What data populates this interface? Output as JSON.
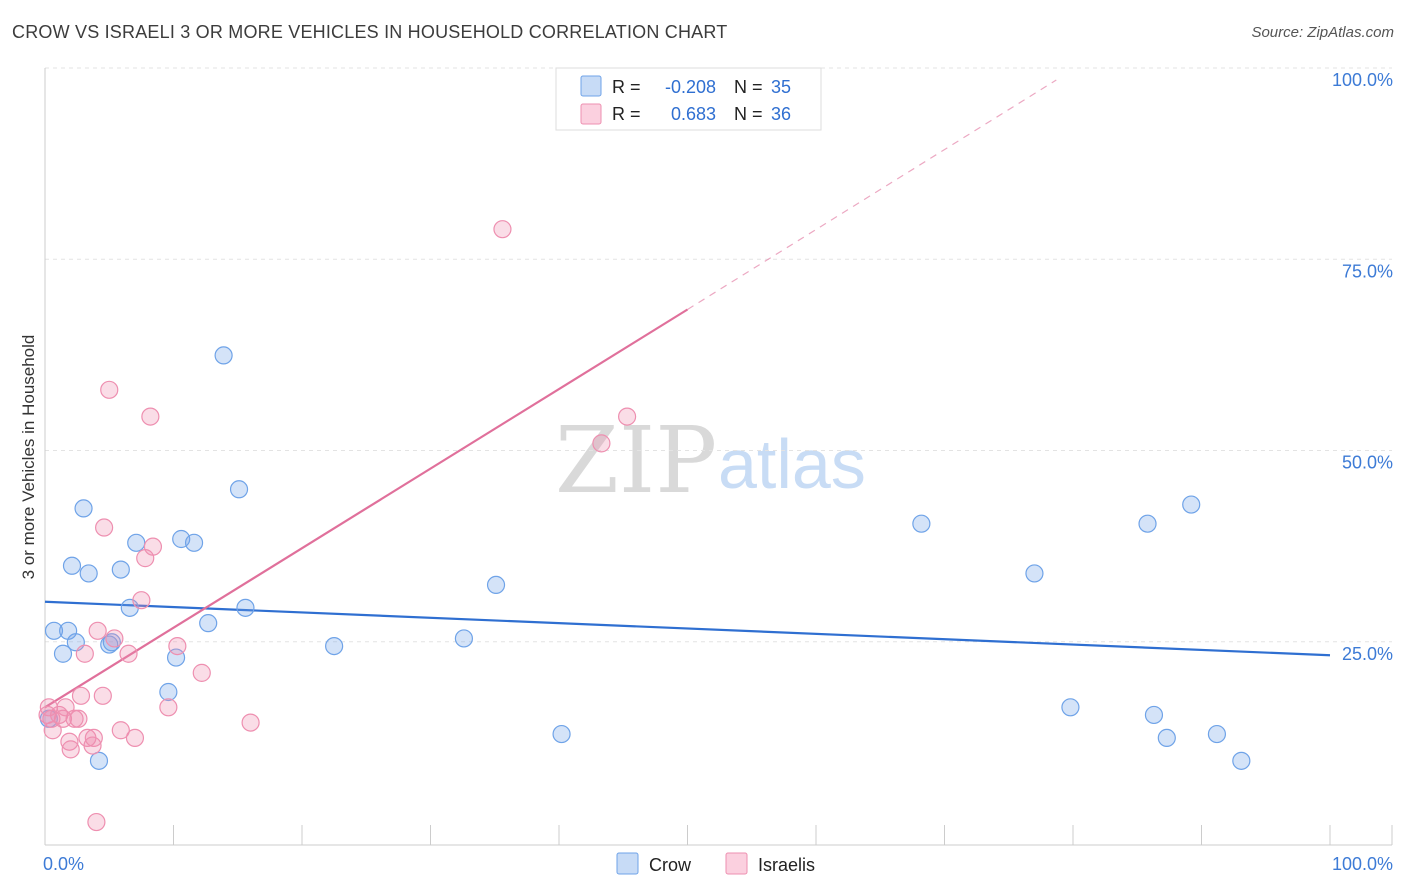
{
  "title": "CROW VS ISRAELI 3 OR MORE VEHICLES IN HOUSEHOLD CORRELATION CHART",
  "source": "Source: ZipAtlas.com",
  "watermark": {
    "zip": "ZIP",
    "atlas": "atlas"
  },
  "legend_top": {
    "rows": [
      {
        "r_label": "R =",
        "r_value": "-0.208",
        "n_label": "N =",
        "n_value": "35",
        "color": "#6fa3e8"
      },
      {
        "r_label": "R =",
        "r_value": "0.683",
        "n_label": "N =",
        "n_value": "36",
        "color": "#ee8fb0"
      }
    ]
  },
  "legend_bottom": [
    {
      "label": "Crow",
      "color": "#6fa3e8"
    },
    {
      "label": "Israelis",
      "color": "#ee8fb0"
    }
  ],
  "chart_data": {
    "type": "scatter",
    "title": "CROW VS ISRAELI 3 OR MORE VEHICLES IN HOUSEHOLD CORRELATION CHART",
    "xlabel": "",
    "ylabel": "3 or more Vehicles in Household",
    "xlim": [
      0,
      100
    ],
    "ylim": [
      0,
      100
    ],
    "x_tick_labels": [
      "0.0%",
      "100.0%"
    ],
    "y_tick_labels": [
      "25.0%",
      "50.0%",
      "75.0%",
      "100.0%"
    ],
    "y_ticks": [
      25,
      50,
      75,
      100
    ],
    "grid": true,
    "series": [
      {
        "name": "Crow",
        "color": "#6fa3e8",
        "line_color": "#2f6fd1",
        "trend": {
          "x0": 0,
          "y0": 31.8,
          "x1": 100,
          "y1": 24.8,
          "dashed_to": null
        },
        "points": [
          [
            0.7,
            28
          ],
          [
            1.4,
            25
          ],
          [
            1.8,
            28
          ],
          [
            2.1,
            36.5
          ],
          [
            2.4,
            26.5
          ],
          [
            3.0,
            44
          ],
          [
            3.4,
            35.5
          ],
          [
            4.2,
            11
          ],
          [
            5.0,
            26.2
          ],
          [
            5.2,
            26.5
          ],
          [
            5.9,
            36
          ],
          [
            6.6,
            31
          ],
          [
            7.1,
            39.5
          ],
          [
            9.6,
            20
          ],
          [
            10.2,
            24.5
          ],
          [
            10.6,
            40
          ],
          [
            11.6,
            39.5
          ],
          [
            12.7,
            29
          ],
          [
            13.9,
            64
          ],
          [
            15.1,
            46.5
          ],
          [
            15.6,
            31
          ],
          [
            22.5,
            26
          ],
          [
            32.6,
            27
          ],
          [
            35.1,
            34
          ],
          [
            40.2,
            14.5
          ],
          [
            68.2,
            42
          ],
          [
            77.0,
            35.5
          ],
          [
            79.8,
            18
          ],
          [
            85.8,
            42
          ],
          [
            86.3,
            17
          ],
          [
            87.3,
            14
          ],
          [
            89.2,
            44.5
          ],
          [
            91.2,
            14.5
          ],
          [
            93.1,
            11
          ],
          [
            0.3,
            16.5
          ]
        ]
      },
      {
        "name": "Israelis",
        "color": "#ee8fb0",
        "line_color": "#e0709b",
        "trend": {
          "x0": 0,
          "y0": 18,
          "x1": 50,
          "y1": 70,
          "dashed_to": [
            78.7,
            100
          ]
        },
        "points": [
          [
            0.3,
            18
          ],
          [
            0.5,
            16.5
          ],
          [
            0.6,
            15
          ],
          [
            1.1,
            17
          ],
          [
            1.4,
            16.5
          ],
          [
            1.6,
            18
          ],
          [
            1.9,
            13.5
          ],
          [
            2.0,
            12.5
          ],
          [
            2.3,
            16.5
          ],
          [
            2.6,
            16.5
          ],
          [
            2.8,
            19.5
          ],
          [
            3.1,
            25
          ],
          [
            3.3,
            14
          ],
          [
            3.7,
            13
          ],
          [
            3.8,
            14
          ],
          [
            4.0,
            3
          ],
          [
            4.1,
            28
          ],
          [
            4.5,
            19.5
          ],
          [
            4.6,
            41.5
          ],
          [
            5.0,
            59.5
          ],
          [
            5.4,
            27
          ],
          [
            5.9,
            15
          ],
          [
            6.5,
            25
          ],
          [
            7.0,
            14
          ],
          [
            7.5,
            32
          ],
          [
            7.8,
            37.5
          ],
          [
            8.2,
            56
          ],
          [
            8.4,
            39
          ],
          [
            9.6,
            18
          ],
          [
            10.3,
            26
          ],
          [
            12.2,
            22.5
          ],
          [
            16.0,
            16
          ],
          [
            35.6,
            80.5
          ],
          [
            43.3,
            52.5
          ],
          [
            45.3,
            56
          ],
          [
            0.2,
            17
          ]
        ]
      }
    ]
  }
}
